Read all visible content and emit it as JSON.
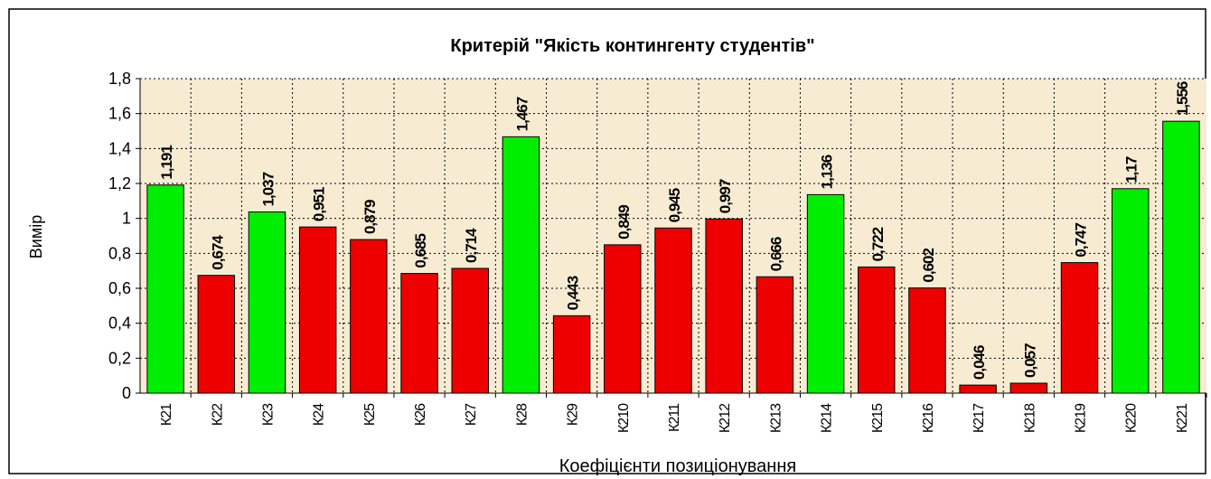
{
  "chart_data": {
    "type": "bar",
    "title": "Критерій \"Якість контингенту студентів\"",
    "x_label": "Коефіцієнти позиціонування",
    "y_label": "Вимір",
    "categories": [
      "К21",
      "К22",
      "К23",
      "К24",
      "К25",
      "К26",
      "К27",
      "К28",
      "К29",
      "К210",
      "К211",
      "К212",
      "К213",
      "К214",
      "К215",
      "К216",
      "К217",
      "К218",
      "К219",
      "К220",
      "К221"
    ],
    "values": [
      1.191,
      0.674,
      1.037,
      0.951,
      0.879,
      0.685,
      0.714,
      1.467,
      0.443,
      0.849,
      0.945,
      0.997,
      0.666,
      1.136,
      0.722,
      0.602,
      0.046,
      0.057,
      0.747,
      1.17,
      1.556
    ],
    "value_labels": [
      "1,191",
      "0,674",
      "1,037",
      "0,951",
      "0,879",
      "0,685",
      "0,714",
      "1,467",
      "0,443",
      "0,849",
      "0,945",
      "0,997",
      "0,666",
      "1,136",
      "0,722",
      "0,602",
      "0,046",
      "0,057",
      "0,747",
      "1,17",
      "1,556"
    ],
    "colors": [
      "#00ee00",
      "#ee0000",
      "#00ee00",
      "#ee0000",
      "#ee0000",
      "#ee0000",
      "#ee0000",
      "#00ee00",
      "#ee0000",
      "#ee0000",
      "#ee0000",
      "#ee0000",
      "#ee0000",
      "#00ee00",
      "#ee0000",
      "#ee0000",
      "#ee0000",
      "#ee0000",
      "#ee0000",
      "#00ee00",
      "#00ee00"
    ],
    "ylim": [
      0,
      1.8
    ],
    "yticks": [
      0,
      {
        "value": 0.2,
        "label": "0,2"
      },
      {
        "value": 0.4,
        "label": "0,4"
      },
      {
        "value": 0.6,
        "label": "0,6"
      },
      {
        "value": 0.8,
        "label": "0,8"
      },
      1,
      {
        "value": 1.2,
        "label": "1,2"
      },
      {
        "value": 1.4,
        "label": "1,4"
      },
      {
        "value": 1.6,
        "label": "1,6"
      },
      {
        "value": 1.8,
        "label": "1,8"
      }
    ],
    "grid": true
  }
}
